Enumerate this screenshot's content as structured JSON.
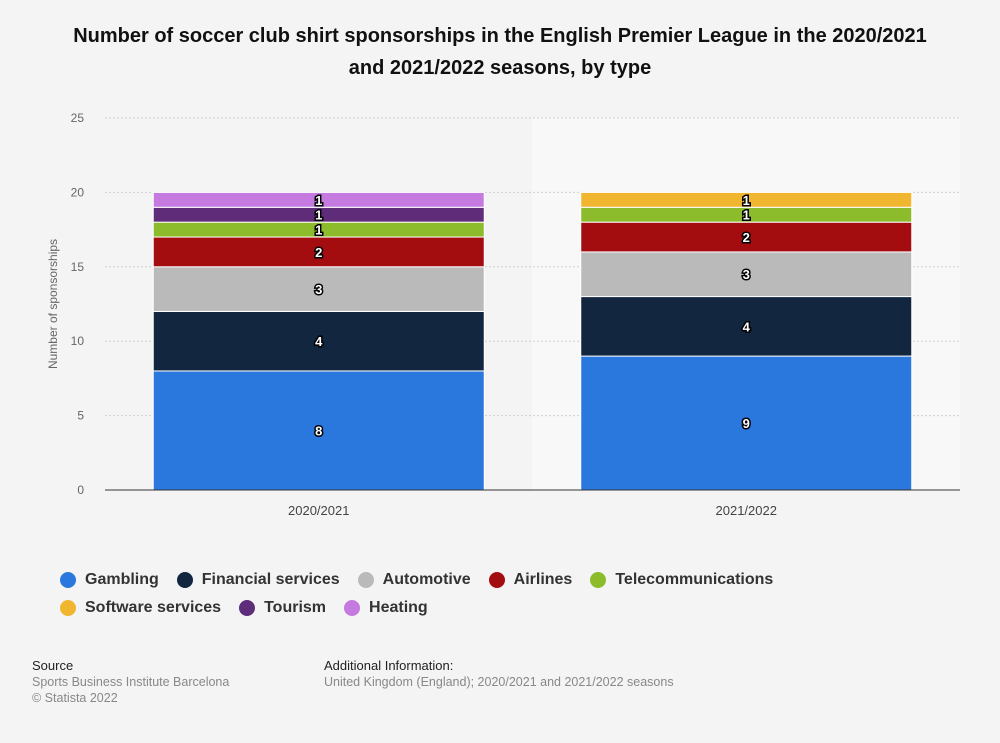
{
  "title": "Number of soccer club shirt sponsorships in the English Premier League in the 2020/2021 and 2021/2022 seasons, by type",
  "chart_data": {
    "type": "bar",
    "stacked": true,
    "categories": [
      "2020/2021",
      "2021/2022"
    ],
    "series": [
      {
        "name": "Gambling",
        "color": "#2a77dd",
        "values": [
          8,
          9
        ]
      },
      {
        "name": "Financial services",
        "color": "#12263f",
        "values": [
          4,
          4
        ]
      },
      {
        "name": "Automotive",
        "color": "#bababa",
        "values": [
          3,
          3
        ]
      },
      {
        "name": "Airlines",
        "color": "#a30d0f",
        "values": [
          2,
          2
        ]
      },
      {
        "name": "Telecommunications",
        "color": "#8cbc2b",
        "values": [
          1,
          1
        ]
      },
      {
        "name": "Software services",
        "color": "#f1b630",
        "values": [
          0,
          1
        ]
      },
      {
        "name": "Tourism",
        "color": "#5e2c78",
        "values": [
          1,
          0
        ]
      },
      {
        "name": "Heating",
        "color": "#c57adf",
        "values": [
          1,
          0
        ]
      }
    ],
    "ylabel": "Number of sponsorships",
    "xlabel": "",
    "ylim": [
      0,
      25
    ],
    "yticks": [
      0,
      5,
      10,
      15,
      20,
      25
    ],
    "grid": true,
    "legend": "bottom"
  },
  "footer": {
    "source_heading": "Source",
    "source_lines": [
      "Sports Business Institute Barcelona",
      "© Statista 2022"
    ],
    "info_heading": "Additional Information:",
    "info_text": "United Kingdom (England); 2020/2021 and 2021/2022 seasons"
  }
}
